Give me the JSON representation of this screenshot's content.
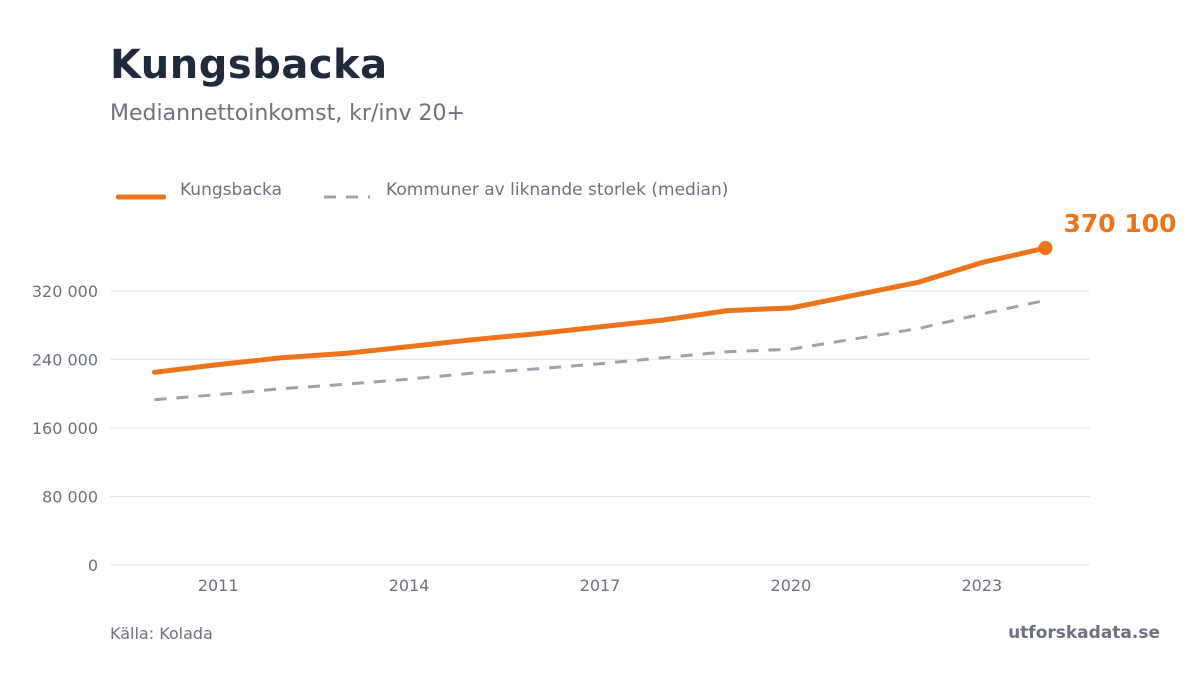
{
  "header": {
    "title": "Kungsbacka",
    "subtitle": "Mediannettoinkomst, kr/inv 20+"
  },
  "footer": {
    "source": "Källa: Kolada",
    "brand": "utforskadata.se"
  },
  "chart_data": {
    "type": "line",
    "x": [
      2010,
      2011,
      2012,
      2013,
      2014,
      2015,
      2016,
      2017,
      2018,
      2019,
      2020,
      2021,
      2022,
      2023,
      2024
    ],
    "series": [
      {
        "name": "Kungsbacka",
        "color": "#ed7418",
        "style": "solid",
        "values": [
          225000,
          234000,
          242000,
          247000,
          255000,
          263000,
          270000,
          278000,
          286000,
          297000,
          300000,
          315000,
          330000,
          353000,
          370100
        ]
      },
      {
        "name": "Kommuner av liknande storlek (median)",
        "color": "#9ca3af",
        "style": "dashed",
        "values": [
          193000,
          199000,
          206000,
          211000,
          217000,
          224000,
          229000,
          235000,
          242000,
          249000,
          252000,
          264000,
          276000,
          293000,
          309000
        ]
      }
    ],
    "xticks": [
      2011,
      2014,
      2017,
      2020,
      2023
    ],
    "yticks": [
      {
        "value": 0,
        "label": "0"
      },
      {
        "value": 80000,
        "label": "80 000"
      },
      {
        "value": 160000,
        "label": "160 000"
      },
      {
        "value": 240000,
        "label": "240 000"
      },
      {
        "value": 320000,
        "label": "320 000"
      }
    ],
    "ylim": [
      0,
      370100
    ],
    "xlim": [
      2009.3,
      2024.7
    ],
    "end_label": {
      "series": 0,
      "text": "370 100"
    },
    "grid": true,
    "legend_position": "top-left",
    "colors": {
      "grid": "#e5e7eb",
      "axis_text": "#6b7280",
      "title": "#1f2a3c"
    }
  }
}
